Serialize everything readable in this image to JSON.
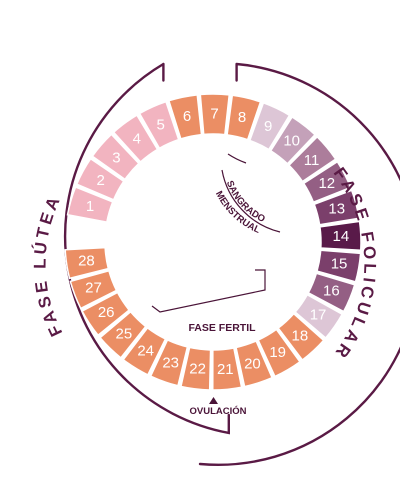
{
  "labels": {
    "luteal_phase": "FASE LÚTEA",
    "follicular_phase": "FASE FOLICULAR",
    "menstrual_line1": "SANGRADO",
    "menstrual_line2": "MENSTRUAL",
    "fertile_phase": "FASE FERTIL",
    "ovulation": "OVULACIÓN"
  },
  "days": [
    {
      "n": "1",
      "color": "#f2b4c0"
    },
    {
      "n": "2",
      "color": "#f2b4c0"
    },
    {
      "n": "3",
      "color": "#f2b4c0"
    },
    {
      "n": "4",
      "color": "#f2b4c0"
    },
    {
      "n": "5",
      "color": "#f2b4c0"
    },
    {
      "n": "6",
      "color": "#eb8e64"
    },
    {
      "n": "7",
      "color": "#eb8e64"
    },
    {
      "n": "8",
      "color": "#eb8e64"
    },
    {
      "n": "9",
      "color": "#ddc6d6"
    },
    {
      "n": "10",
      "color": "#c4a1b9"
    },
    {
      "n": "11",
      "color": "#ac7d9b"
    },
    {
      "n": "12",
      "color": "#945f84"
    },
    {
      "n": "13",
      "color": "#7b3f6b"
    },
    {
      "n": "14",
      "color": "#591a49"
    },
    {
      "n": "15",
      "color": "#7b3f6b"
    },
    {
      "n": "16",
      "color": "#945f84"
    },
    {
      "n": "17",
      "color": "#ddc6d6"
    },
    {
      "n": "18",
      "color": "#eb8e64"
    },
    {
      "n": "19",
      "color": "#eb8e64"
    },
    {
      "n": "20",
      "color": "#eb8e64"
    },
    {
      "n": "21",
      "color": "#eb8e64"
    },
    {
      "n": "22",
      "color": "#eb8e64"
    },
    {
      "n": "23",
      "color": "#eb8e64"
    },
    {
      "n": "24",
      "color": "#eb8e64"
    },
    {
      "n": "25",
      "color": "#eb8e64"
    },
    {
      "n": "26",
      "color": "#eb8e64"
    },
    {
      "n": "27",
      "color": "#eb8e64"
    },
    {
      "n": "28",
      "color": "#eb8e64"
    }
  ],
  "colors": {
    "frame": "#5a1a45",
    "text_dark": "#4a1438"
  }
}
